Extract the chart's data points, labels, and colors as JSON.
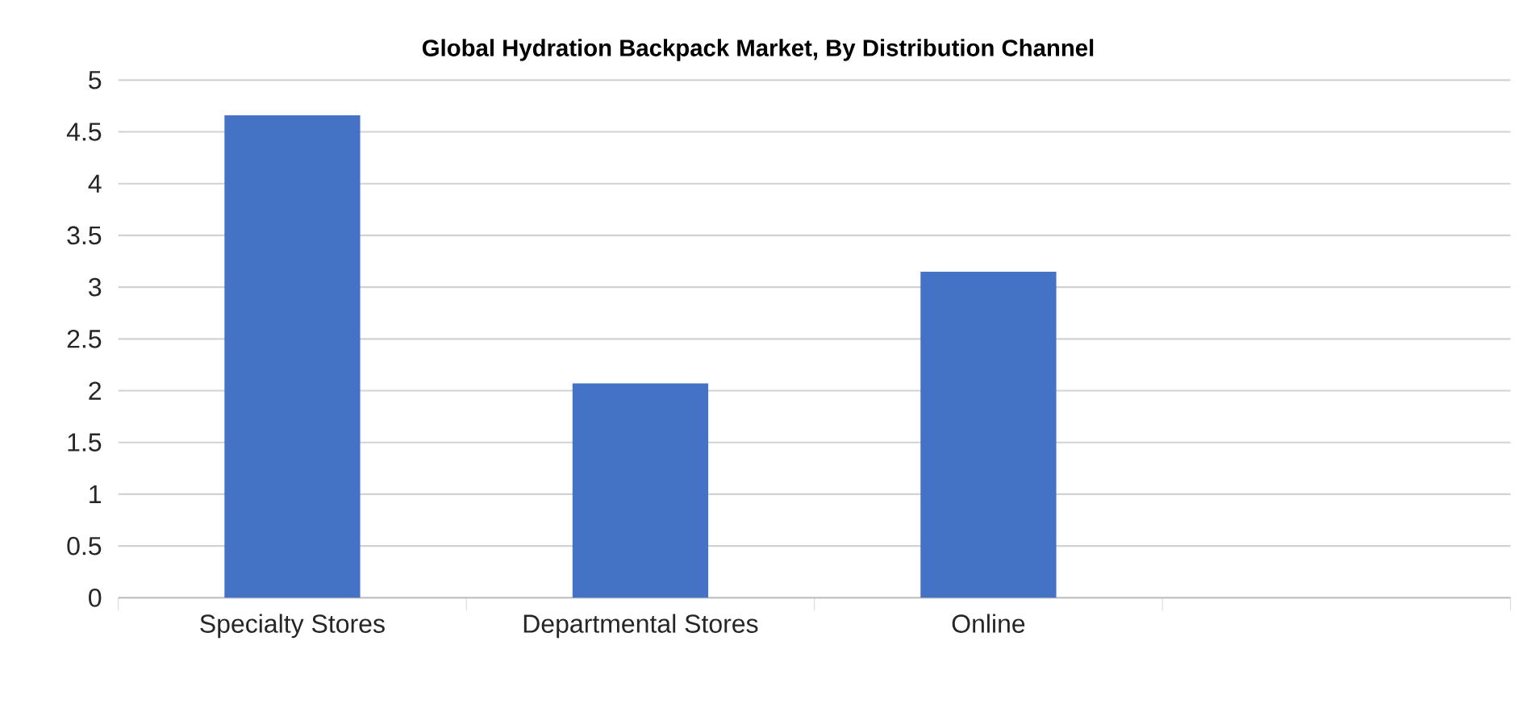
{
  "chart_data": {
    "type": "bar",
    "title": "Global Hydration Backpack Market, By Distribution Channel",
    "categories": [
      "Specialty Stores",
      "Departmental Stores",
      "Online",
      null
    ],
    "values": [
      4.66,
      2.07,
      3.15,
      null
    ],
    "color": "#4472c4",
    "ylim": [
      0,
      5
    ],
    "yticks": [
      0,
      0.5,
      1,
      1.5,
      2,
      2.5,
      3,
      3.5,
      4,
      4.5,
      5
    ],
    "grid": "y"
  }
}
